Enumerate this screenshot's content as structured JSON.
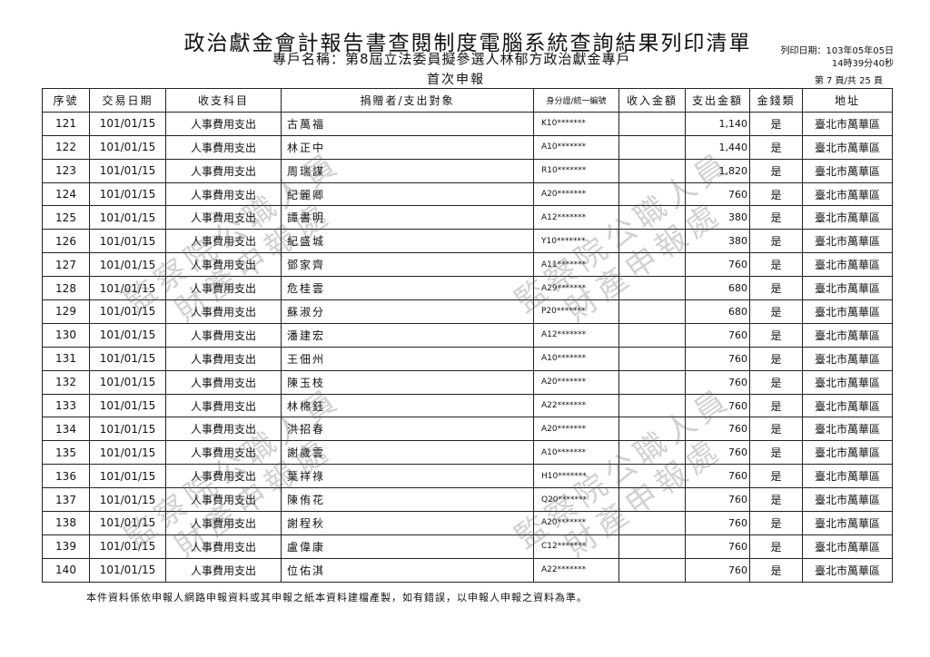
{
  "header": {
    "title": "政治獻金會計報告書查閱制度電腦系統查詢結果列印清單",
    "subtitle": "專戶名稱：第8屆立法委員擬參選人林郁方政治獻金專戶",
    "report_type": "首次申報",
    "print_date_line1": "列印日期：103年05年05日",
    "print_date_line2": "14時39分40秒",
    "page_info": "第 7 頁/共 25 頁"
  },
  "table": {
    "columns": [
      "序號",
      "交易日期",
      "收支科目",
      "捐贈者/支出對象",
      "身分證/統一編號",
      "收入金額",
      "支出金額",
      "金錢類",
      "地址"
    ],
    "rows": [
      [
        "121",
        "101/01/15",
        "人事費用支出",
        "古萬福",
        "K10*******",
        "",
        "1,140",
        "是",
        "臺北市萬華區"
      ],
      [
        "122",
        "101/01/15",
        "人事費用支出",
        "林正中",
        "A10*******",
        "",
        "1,440",
        "是",
        "臺北市萬華區"
      ],
      [
        "123",
        "101/01/15",
        "人事費用支出",
        "周瑞謀",
        "R10*******",
        "",
        "1,820",
        "是",
        "臺北市萬華區"
      ],
      [
        "124",
        "101/01/15",
        "人事費用支出",
        "紀麗卿",
        "A20*******",
        "",
        "760",
        "是",
        "臺北市萬華區"
      ],
      [
        "125",
        "101/01/15",
        "人事費用支出",
        "譚書明",
        "A12*******",
        "",
        "380",
        "是",
        "臺北市萬華區"
      ],
      [
        "126",
        "101/01/15",
        "人事費用支出",
        "紀盛城",
        "Y10*******",
        "",
        "380",
        "是",
        "臺北市萬華區"
      ],
      [
        "127",
        "101/01/15",
        "人事費用支出",
        "鄧家齊",
        "A11*******",
        "",
        "760",
        "是",
        "臺北市萬華區"
      ],
      [
        "128",
        "101/01/15",
        "人事費用支出",
        "危桂雲",
        "A29*******",
        "",
        "680",
        "是",
        "臺北市萬華區"
      ],
      [
        "129",
        "101/01/15",
        "人事費用支出",
        "蘇淑分",
        "P20*******",
        "",
        "680",
        "是",
        "臺北市萬華區"
      ],
      [
        "130",
        "101/01/15",
        "人事費用支出",
        "潘建宏",
        "A12*******",
        "",
        "760",
        "是",
        "臺北市萬華區"
      ],
      [
        "131",
        "101/01/15",
        "人事費用支出",
        "王佃州",
        "A10*******",
        "",
        "760",
        "是",
        "臺北市萬華區"
      ],
      [
        "132",
        "101/01/15",
        "人事費用支出",
        "陳玉枝",
        "A20*******",
        "",
        "760",
        "是",
        "臺北市萬華區"
      ],
      [
        "133",
        "101/01/15",
        "人事費用支出",
        "林棉鈺",
        "A22*******",
        "",
        "760",
        "是",
        "臺北市萬華區"
      ],
      [
        "134",
        "101/01/15",
        "人事費用支出",
        "洪招春",
        "A20*******",
        "",
        "760",
        "是",
        "臺北市萬華區"
      ],
      [
        "135",
        "101/01/15",
        "人事費用支出",
        "謝歲雲",
        "A10*******",
        "",
        "760",
        "是",
        "臺北市萬華區"
      ],
      [
        "136",
        "101/01/15",
        "人事費用支出",
        "葉祥祿",
        "H10*******",
        "",
        "760",
        "是",
        "臺北市萬華區"
      ],
      [
        "137",
        "101/01/15",
        "人事費用支出",
        "陳侑花",
        "Q20*******",
        "",
        "760",
        "是",
        "臺北市萬華區"
      ],
      [
        "138",
        "101/01/15",
        "人事費用支出",
        "謝程秋",
        "A20*******",
        "",
        "760",
        "是",
        "臺北市萬華區"
      ],
      [
        "139",
        "101/01/15",
        "人事費用支出",
        "盧偉康",
        "C12*******",
        "",
        "760",
        "是",
        "臺北市萬華區"
      ],
      [
        "140",
        "101/01/15",
        "人事費用支出",
        "位佑淇",
        "A22*******",
        "",
        "760",
        "是",
        "臺北市萬華區"
      ]
    ]
  },
  "footer": "本件資料係依申報人網路申報資料或其申報之紙本資料建檔產製，如有錯誤，以申報人申報之資料為準。",
  "watermark": {
    "line1": "監察院公職人員",
    "line2": "財產申報處"
  }
}
